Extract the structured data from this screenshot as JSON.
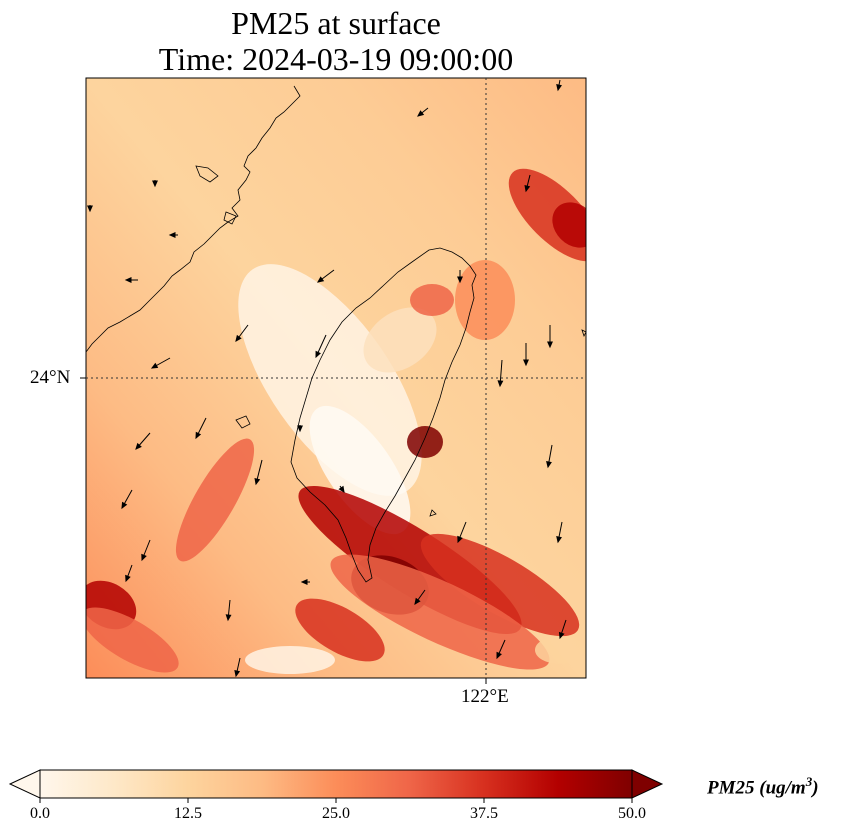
{
  "title": {
    "line1": "PM25 at surface",
    "line2": "Time: 2024-03-19 09:00:00"
  },
  "map": {
    "lat_gridline_label": "24°N",
    "lon_gridline_label": "122°E",
    "variable": "PM25",
    "units": "ug/m^3",
    "gridlines": "dotted",
    "coastlines": true,
    "wind_vectors": true
  },
  "colorbar": {
    "label_text": "PM25 (ug/m",
    "label_sup": "3",
    "label_close": ")",
    "ticks": [
      "0.0",
      "12.5",
      "25.0",
      "37.5",
      "50.0"
    ],
    "min": 0,
    "max": 50,
    "extend": "both",
    "colormap": [
      "#fff7ec",
      "#fee8c8",
      "#fdd49e",
      "#fdbb84",
      "#fc8d59",
      "#ef6548",
      "#d7301f",
      "#b30000",
      "#7f0000"
    ]
  }
}
